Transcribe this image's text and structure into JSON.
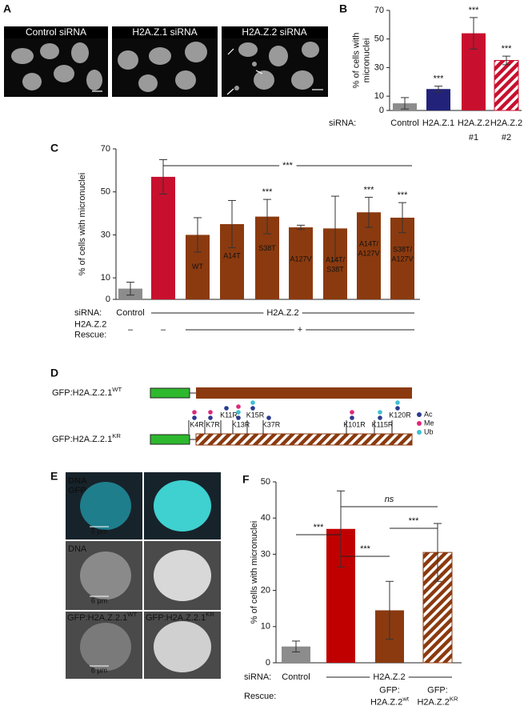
{
  "panel_a": {
    "label": "A",
    "titles": [
      "Control siRNA",
      "H2A.Z.1 siRNA",
      "H2A.Z.2 siRNA"
    ]
  },
  "chart_data": [
    {
      "type": "bar",
      "panel": "B",
      "y_label": [
        "% of cells with",
        "micronuclei"
      ],
      "ylim": [
        0,
        70
      ],
      "yticks": [
        0,
        10,
        30,
        50,
        70
      ],
      "values": [
        5,
        15,
        54,
        35
      ],
      "errors": [
        4,
        2,
        11,
        3
      ],
      "colors": [
        "#8c8c8c",
        "#22227a",
        "#c8102e",
        "#c8102e"
      ],
      "hatched": [
        false,
        false,
        false,
        true
      ],
      "significance": [
        null,
        "***",
        "***",
        "***"
      ],
      "significance_color": "#000000",
      "rows": [
        {
          "label": [
            "siRNA:"
          ],
          "items": [
            {
              "text": [
                "Control"
              ],
              "from": 0,
              "to": 0
            },
            {
              "text": [
                "H2A.Z.1"
              ],
              "from": 1,
              "to": 1
            },
            {
              "text": [
                "H2A.Z.2",
                "#1"
              ],
              "from": 2,
              "to": 2
            },
            {
              "text": [
                "H2A.Z.2",
                "#2"
              ],
              "from": 3,
              "to": 3
            }
          ]
        }
      ]
    },
    {
      "type": "bar",
      "panel": "C",
      "y_label": [
        "% of cells with micronuclei"
      ],
      "ylim": [
        0,
        70
      ],
      "yticks": [
        0,
        10,
        30,
        50,
        70
      ],
      "values": [
        5,
        57,
        30,
        35,
        38.5,
        33.5,
        33,
        40.5,
        38
      ],
      "errors": [
        3,
        8,
        8,
        11,
        8,
        1,
        15,
        7,
        7
      ],
      "colors": [
        "#8c8c8c",
        "#c8102e",
        "#8b3a0f",
        "#8b3a0f",
        "#8b3a0f",
        "#8b3a0f",
        "#8b3a0f",
        "#8b3a0f",
        "#8b3a0f"
      ],
      "hatched": [
        false,
        false,
        false,
        false,
        false,
        false,
        false,
        false,
        false
      ],
      "bar_labels": [
        null,
        null,
        [
          "WT"
        ],
        [
          "A14T"
        ],
        [
          "S38T"
        ],
        [
          "A127V"
        ],
        [
          "A14T/",
          "S38T"
        ],
        [
          "A14T/",
          "A127V"
        ],
        [
          "S38T/",
          "A127V"
        ]
      ],
      "significance": [
        null,
        null,
        null,
        null,
        "***",
        null,
        null,
        "***",
        "***"
      ],
      "significance_color": "#3b3bd1",
      "brackets": [
        {
          "text": "***",
          "from": 1,
          "to": 8,
          "color": "#000000"
        }
      ],
      "rows": [
        {
          "label": [
            "siRNA:"
          ],
          "items": [
            {
              "text": [
                "Control"
              ],
              "from": 0,
              "to": 0
            },
            {
              "text": [
                "H2A.Z.2"
              ],
              "from": 1,
              "to": 8,
              "line": true
            }
          ]
        },
        {
          "label": [
            "H2A.Z.2",
            "Rescue:"
          ],
          "items": [
            {
              "text": [
                "–"
              ],
              "from": 0,
              "to": 0
            },
            {
              "text": [
                "–"
              ],
              "from": 1,
              "to": 1
            },
            {
              "text": [
                "+"
              ],
              "from": 2,
              "to": 8,
              "line": true
            }
          ]
        }
      ]
    },
    {
      "type": "bar",
      "panel": "F",
      "y_label": [
        "% of cells with micronuclei"
      ],
      "ylim": [
        0,
        50
      ],
      "yticks": [
        0,
        10,
        20,
        30,
        40,
        50
      ],
      "values": [
        4.5,
        37,
        14.5,
        30.5
      ],
      "errors": [
        1.5,
        10.5,
        8,
        8
      ],
      "colors": [
        "#8c8c8c",
        "#c00000",
        "#8b3a0f",
        "#8b3a0f"
      ],
      "hatched": [
        false,
        false,
        false,
        true
      ],
      "brackets": [
        {
          "text": "***",
          "from": 0,
          "to": 1,
          "color": "#000000"
        },
        {
          "text": "***",
          "from": 1,
          "to": 2,
          "color": "#000000"
        },
        {
          "text": "ns",
          "from": 1,
          "to": 3,
          "color": "#000000",
          "italic": true
        },
        {
          "text": "***",
          "from": 2,
          "to": 3,
          "color": "#3b3bd1"
        }
      ],
      "rows": [
        {
          "label": [
            "siRNA:"
          ],
          "items": [
            {
              "text": [
                "Control"
              ],
              "from": 0,
              "to": 0
            },
            {
              "text": [
                "H2A.Z.2"
              ],
              "from": 1,
              "to": 3,
              "line": true
            }
          ]
        },
        {
          "label": [
            "Rescue:"
          ],
          "items": [
            {
              "text": [
                "GFP:",
                {
                  "text": "H2A.Z.2",
                  "sup": "wt"
                }
              ],
              "from": 2,
              "to": 2
            },
            {
              "text": [
                "GFP:",
                {
                  "text": "H2A.Z.2",
                  "sup": "KR"
                }
              ],
              "from": 3,
              "to": 3
            }
          ]
        }
      ]
    }
  ],
  "panel_d": {
    "label": "D",
    "constructs": [
      {
        "text": "GFP:H2A.Z.2.1",
        "sup": "WT"
      },
      {
        "text": "GFP:H2A.Z.2.1",
        "sup": "KR"
      }
    ],
    "mutations": [
      "K4R",
      "K7R",
      "K11R",
      "K13R",
      "K15R",
      "K37R",
      "K101R",
      "K115R",
      "K120R"
    ],
    "legend": [
      "Ac",
      "Me",
      "Ub"
    ],
    "legend_colors": [
      "#2b3a8f",
      "#e0287a",
      "#3fc0d0"
    ]
  },
  "panel_e": {
    "label": "E",
    "channels": [
      "DNA",
      "GFP"
    ],
    "channel_colors": [
      "#2fa6e6",
      "#3fd13f"
    ],
    "row_label": "DNA",
    "scale_bar": "6 µm",
    "constructs": [
      {
        "text": "GFP:H2A.Z.2.1",
        "sup": "WT"
      },
      {
        "text": "GFP:H2A.Z.2.1",
        "sup": "KR"
      }
    ]
  }
}
